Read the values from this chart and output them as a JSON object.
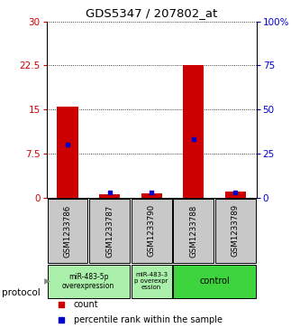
{
  "title": "GDS5347 / 207802_at",
  "samples": [
    "GSM1233786",
    "GSM1233787",
    "GSM1233790",
    "GSM1233788",
    "GSM1233789"
  ],
  "red_values": [
    15.5,
    0.6,
    0.8,
    22.5,
    1.0
  ],
  "blue_percentile": [
    30,
    3,
    3,
    33,
    3
  ],
  "left_yticks": [
    0,
    7.5,
    15,
    22.5,
    30
  ],
  "right_yticks": [
    0,
    25,
    50,
    75,
    100
  ],
  "right_yticklabels": [
    "0",
    "25",
    "50",
    "75",
    "100%"
  ],
  "ymax": 30,
  "protocol_groups": [
    {
      "label": "miR-483-5p\noverexpression",
      "start": 0,
      "end": 1,
      "color": "#90EE90"
    },
    {
      "label": "miR-483-3\np overexpr\nession",
      "start": 2,
      "end": 2,
      "color": "#90EE90"
    },
    {
      "label": "control",
      "start": 3,
      "end": 4,
      "color": "#3DD63D"
    }
  ],
  "protocol_label": "protocol",
  "legend_red_label": "count",
  "legend_blue_label": "percentile rank within the sample",
  "bar_color": "#CC0000",
  "blue_color": "#0000CC",
  "bg_color": "#FFFFFF",
  "label_bg_color": "#C8C8C8"
}
